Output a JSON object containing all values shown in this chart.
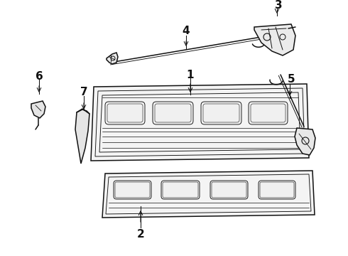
{
  "bg_color": "#ffffff",
  "line_color": "#111111",
  "figsize": [
    4.9,
    3.6
  ],
  "dpi": 100,
  "label_fontsize": 11
}
